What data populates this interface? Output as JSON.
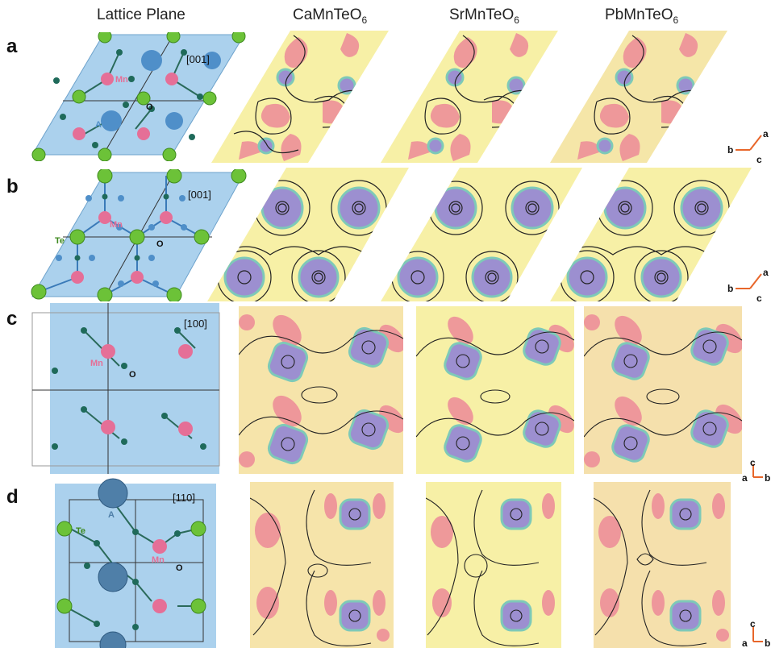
{
  "columns": {
    "lattice": "Lattice Plane",
    "col1": {
      "base": "CaMnTeO",
      "sub": "6"
    },
    "col2": {
      "base": "SrMnTeO",
      "sub": "6"
    },
    "col3": {
      "base": "PbMnTeO",
      "sub": "6"
    }
  },
  "rows": [
    {
      "label": "a",
      "direction": "[001]"
    },
    {
      "label": "b",
      "direction": "[001]"
    },
    {
      "label": "c",
      "direction": "[100]"
    },
    {
      "label": "d",
      "direction": "[110]"
    }
  ],
  "atom_labels": {
    "mn": "Mn",
    "o": "O",
    "a": "A",
    "te": "Te"
  },
  "axes": {
    "row_a": [
      "a",
      "b",
      "c"
    ],
    "row_b": [
      "a",
      "b",
      "c"
    ],
    "row_c": [
      "c",
      "a",
      "b"
    ],
    "row_d": [
      "c",
      "a",
      "b"
    ]
  },
  "colors": {
    "plane": "#9cc9ea",
    "background_yellow": "#f7f0a6",
    "negative_pink": "#ec8a98",
    "positive_purple": "#9c8fd0",
    "teal_ring": "#7ec9b8",
    "te_green": "#6cc238",
    "mn_pink": "#e56f97",
    "o_teal": "#1f6a5a",
    "a_site": "#4f8fc9",
    "axis_orange": "#e8662a"
  }
}
